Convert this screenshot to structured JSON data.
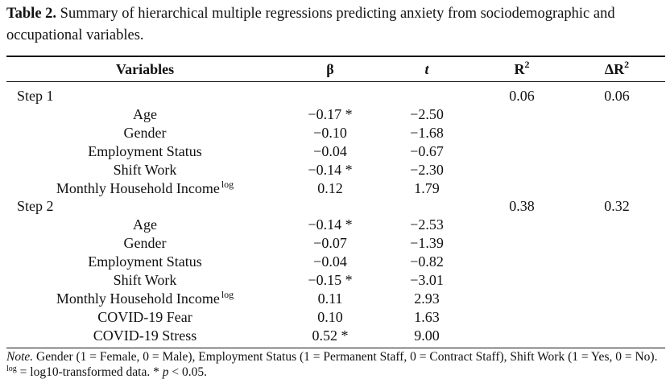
{
  "caption": {
    "label": "Table 2.",
    "text": "Summary of hierarchical multiple regressions predicting anxiety from sociodemographic and occupational variables."
  },
  "headers": {
    "variables": "Variables",
    "beta": "β",
    "t": "t",
    "r2": "R",
    "r2_sup": "2",
    "dr2": "ΔR",
    "dr2_sup": "2"
  },
  "rows": [
    {
      "step": "Step 1",
      "variable": "",
      "sup": "",
      "beta": "",
      "t": "",
      "r2": "0.06",
      "dr2": "0.06"
    },
    {
      "step": "",
      "variable": "Age",
      "sup": "",
      "beta": "−0.17 *",
      "t": "−2.50",
      "r2": "",
      "dr2": ""
    },
    {
      "step": "",
      "variable": "Gender",
      "sup": "",
      "beta": "−0.10",
      "t": "−1.68",
      "r2": "",
      "dr2": ""
    },
    {
      "step": "",
      "variable": "Employment Status",
      "sup": "",
      "beta": "−0.04",
      "t": "−0.67",
      "r2": "",
      "dr2": ""
    },
    {
      "step": "",
      "variable": "Shift Work",
      "sup": "",
      "beta": "−0.14 *",
      "t": "−2.30",
      "r2": "",
      "dr2": ""
    },
    {
      "step": "",
      "variable": "Monthly Household Income",
      "sup": "log",
      "beta": "0.12",
      "t": "1.79",
      "r2": "",
      "dr2": ""
    },
    {
      "step": "Step 2",
      "variable": "",
      "sup": "",
      "beta": "",
      "t": "",
      "r2": "0.38",
      "dr2": "0.32"
    },
    {
      "step": "",
      "variable": "Age",
      "sup": "",
      "beta": "−0.14 *",
      "t": "−2.53",
      "r2": "",
      "dr2": ""
    },
    {
      "step": "",
      "variable": "Gender",
      "sup": "",
      "beta": "−0.07",
      "t": "−1.39",
      "r2": "",
      "dr2": ""
    },
    {
      "step": "",
      "variable": "Employment Status",
      "sup": "",
      "beta": "−0.04",
      "t": "−0.82",
      "r2": "",
      "dr2": ""
    },
    {
      "step": "",
      "variable": "Shift Work",
      "sup": "",
      "beta": "−0.15 *",
      "t": "−3.01",
      "r2": "",
      "dr2": ""
    },
    {
      "step": "",
      "variable": "Monthly Household Income",
      "sup": "log",
      "beta": "0.11",
      "t": "2.93",
      "r2": "",
      "dr2": ""
    },
    {
      "step": "",
      "variable": "COVID-19 Fear",
      "sup": "",
      "beta": "0.10",
      "t": "1.63",
      "r2": "",
      "dr2": ""
    },
    {
      "step": "",
      "variable": "COVID-19 Stress",
      "sup": "",
      "beta": "0.52 *",
      "t": "9.00",
      "r2": "",
      "dr2": ""
    }
  ],
  "note": {
    "label": "Note.",
    "text1": "Gender (1 = Female, 0 = Male), Employment Status (1 = Permanent Staff, 0 = Contract Staff), Shift Work (1 = Yes, 0 = No).",
    "sup": "log",
    "text2": "= log10-transformed data. *",
    "p": "p",
    "text3": "< 0.05."
  }
}
